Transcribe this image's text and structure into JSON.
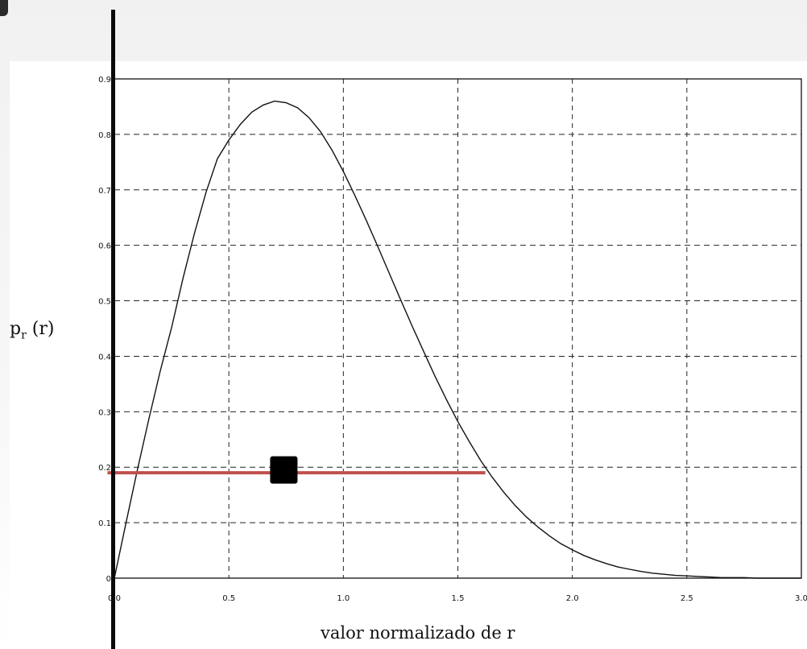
{
  "chart_data": {
    "type": "line",
    "title": "",
    "xlabel": "valor normalizado de r",
    "ylabel": "p_r (r)",
    "ylabel_parts": {
      "main": "p",
      "sub": "r",
      "arg": " (r)"
    },
    "xlim": [
      0,
      3.0
    ],
    "ylim": [
      0,
      0.9
    ],
    "grid": true,
    "grid_style": "dashed",
    "x_ticks": [
      0,
      0.5,
      1.0,
      1.5,
      2.0,
      2.5,
      3.0
    ],
    "x_tick_labels": [
      "0.0",
      "0.5",
      "1.0",
      "1.5",
      "2.0",
      "2.5",
      "3.0"
    ],
    "y_ticks": [
      0,
      0.1,
      0.2,
      0.3,
      0.4,
      0.5,
      0.6,
      0.7,
      0.8,
      0.9
    ],
    "y_tick_labels": [
      "0",
      "0.1",
      "0.2",
      "0.3",
      "0.4",
      "0.5",
      "0.6",
      "0.7",
      "0.8",
      "0.9"
    ],
    "series": [
      {
        "x": [
          0,
          0.05,
          0.1,
          0.15,
          0.2,
          0.25,
          0.3,
          0.35,
          0.4,
          0.45,
          0.5,
          0.55,
          0.6,
          0.65,
          0.7,
          0.75,
          0.8,
          0.85,
          0.9,
          0.95,
          1.0,
          1.05,
          1.1,
          1.15,
          1.2,
          1.25,
          1.3,
          1.35,
          1.4,
          1.45,
          1.5,
          1.55,
          1.6,
          1.65,
          1.7,
          1.75,
          1.8,
          1.85,
          1.9,
          1.95,
          2.0,
          2.05,
          2.1,
          2.15,
          2.2,
          2.25,
          2.3,
          2.35,
          2.4,
          2.45,
          2.5,
          2.55,
          2.6,
          2.65,
          2.7,
          2.75,
          2.8,
          2.85,
          2.9,
          2.95,
          3.0
        ],
        "y": [
          0,
          0.098,
          0.194,
          0.286,
          0.373,
          0.452,
          0.541,
          0.622,
          0.695,
          0.756,
          0.79,
          0.818,
          0.84,
          0.853,
          0.86,
          0.857,
          0.848,
          0.83,
          0.805,
          0.772,
          0.733,
          0.69,
          0.645,
          0.598,
          0.55,
          0.502,
          0.455,
          0.409,
          0.364,
          0.322,
          0.282,
          0.246,
          0.212,
          0.182,
          0.155,
          0.131,
          0.11,
          0.092,
          0.076,
          0.062,
          0.051,
          0.041,
          0.033,
          0.026,
          0.02,
          0.016,
          0.012,
          0.009,
          0.007,
          0.005,
          0.004,
          0.003,
          0.002,
          0.001,
          0.001,
          0.001,
          0,
          0,
          0,
          0,
          0
        ],
        "color": "#111111"
      }
    ],
    "annotations": [
      {
        "type": "hline",
        "y": 0.19,
        "x_from": -0.03,
        "x_to": 1.62,
        "color": "#c0504d"
      },
      {
        "type": "marker",
        "shape": "square",
        "x": 0.74,
        "y": 0.195,
        "color": "#000000"
      }
    ]
  }
}
